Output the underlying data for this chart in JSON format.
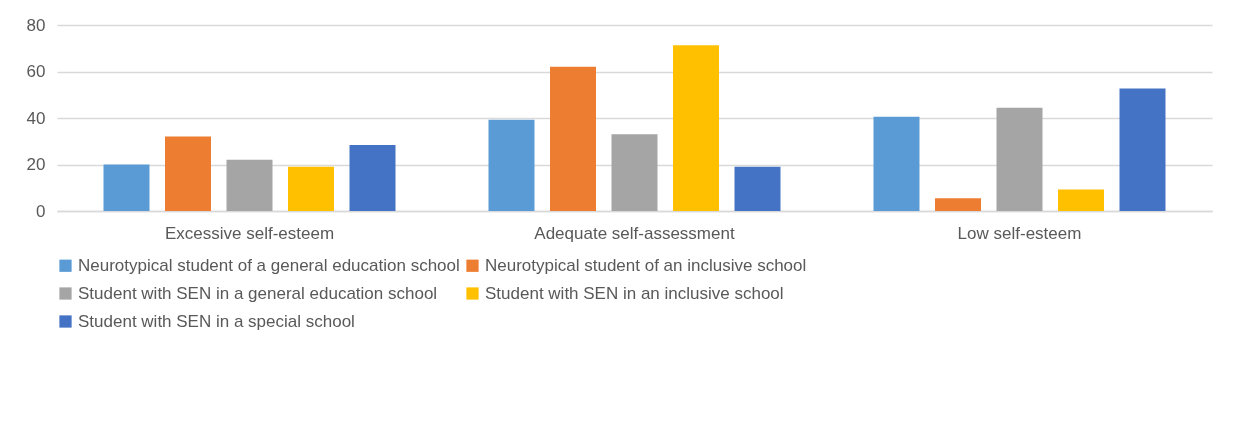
{
  "chart_data": {
    "type": "bar",
    "categories": [
      "Excessive self-esteem",
      "Adequate self-assessment",
      "Low self-esteem"
    ],
    "series": [
      {
        "name": "Neurotypical student of a general education school",
        "color": "#5b9bd5",
        "values": [
          20,
          39.2,
          40.5
        ]
      },
      {
        "name": "Neurotypical student of an inclusive school",
        "color": "#ed7d31",
        "values": [
          32,
          62,
          5.5
        ]
      },
      {
        "name": "Student with SEN in a general education school",
        "color": "#a5a5a5",
        "values": [
          22,
          33,
          44.4
        ]
      },
      {
        "name": "Student with SEN in an inclusive school",
        "color": "#ffc000",
        "values": [
          19,
          71.3,
          9.3
        ]
      },
      {
        "name": "Student with SEN in a special school",
        "color": "#4472c4",
        "values": [
          28.4,
          19,
          52.7
        ]
      }
    ],
    "ylim": [
      0,
      80
    ],
    "yticks": [
      0,
      20,
      40,
      60,
      80
    ],
    "grid": "y",
    "legend": "bottom"
  }
}
